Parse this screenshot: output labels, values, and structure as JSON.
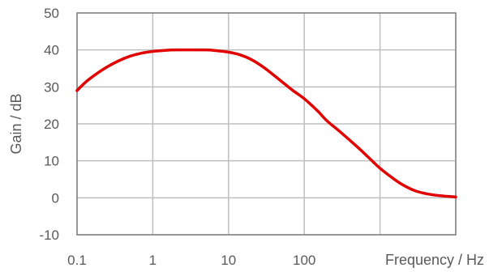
{
  "chart_data": {
    "type": "line",
    "xlabel": "Frequency / Hz",
    "ylabel": "Gain / dB",
    "x_scale": "log",
    "xlim": [
      0.1,
      10000
    ],
    "ylim": [
      -10,
      50
    ],
    "x_ticks": [
      0.1,
      1,
      10,
      100
    ],
    "x_tick_labels": [
      "0.1",
      "1",
      "10",
      "100"
    ],
    "y_ticks": [
      -10,
      0,
      10,
      20,
      30,
      40,
      50
    ],
    "y_tick_labels": [
      "-10",
      "0",
      "10",
      "20",
      "30",
      "40",
      "50"
    ],
    "grid": true,
    "series": [
      {
        "color": "#e00000",
        "x": [
          0.1,
          0.13,
          0.18,
          0.25,
          0.35,
          0.5,
          0.7,
          1,
          1.5,
          2,
          3,
          5,
          7,
          10,
          14,
          20,
          30,
          50,
          70,
          100,
          150,
          200,
          300,
          500,
          700,
          1000,
          1500,
          2000,
          3000,
          5000,
          10000
        ],
        "y": [
          29,
          31.3,
          33.5,
          35.4,
          37,
          38.3,
          39.1,
          39.6,
          39.9,
          40,
          40,
          40,
          39.8,
          39.4,
          38.7,
          37.4,
          35.1,
          31.5,
          29.1,
          26.8,
          23.5,
          20.8,
          17.8,
          13.8,
          11,
          8,
          5.2,
          3.5,
          1.8,
          0.8,
          0.2
        ]
      }
    ]
  }
}
